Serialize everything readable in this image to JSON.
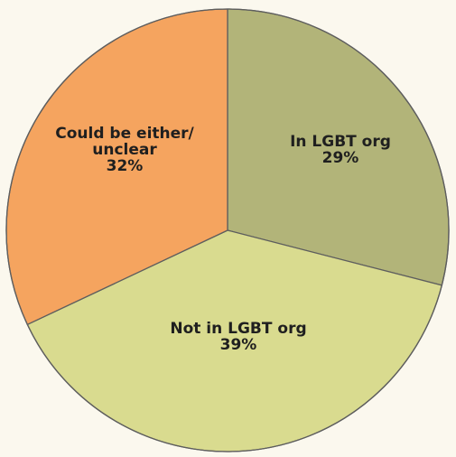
{
  "chart_data": {
    "type": "pie",
    "slices": [
      {
        "label": [
          "In LGBT org"
        ],
        "value_label": "29%",
        "value": 29,
        "color": "#b2b479"
      },
      {
        "label": [
          "Not in LGBT org"
        ],
        "value_label": "39%",
        "value": 39,
        "color": "#d9db8f"
      },
      {
        "label": [
          "Could be either/",
          "unclear"
        ],
        "value_label": "32%",
        "value": 32,
        "color": "#f5a45f"
      }
    ],
    "start_angle_deg": 0,
    "direction": "clockwise",
    "legend": "none"
  }
}
